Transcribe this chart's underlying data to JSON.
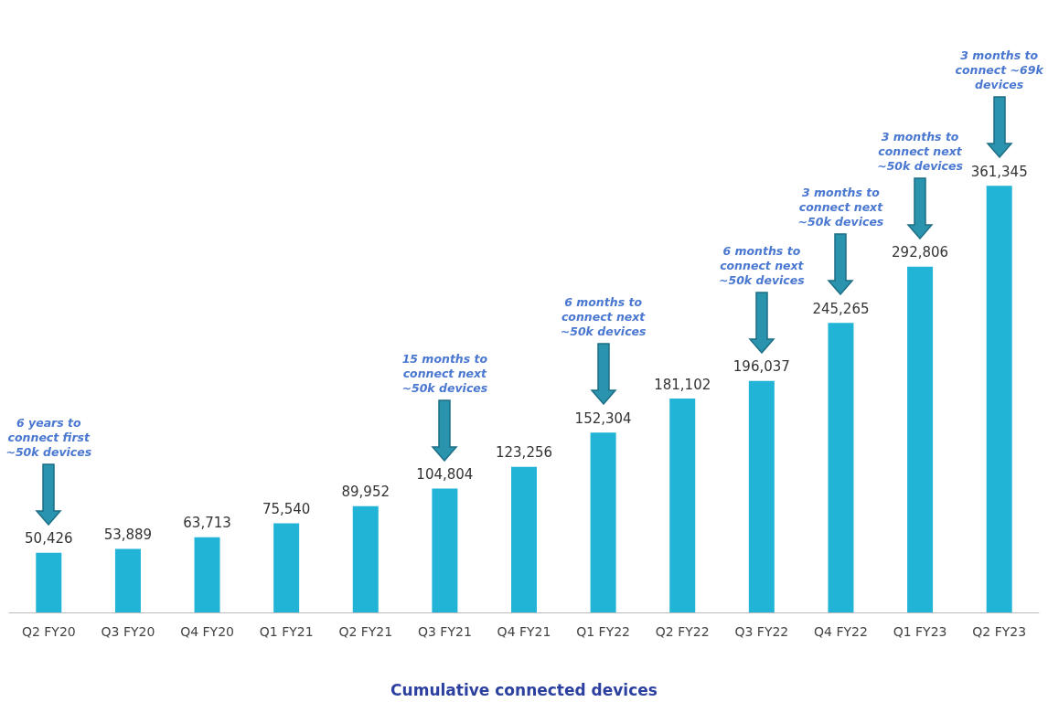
{
  "chart_data": {
    "type": "bar",
    "xlabel": "Cumulative connected devices",
    "categories": [
      "Q2 FY20",
      "Q3 FY20",
      "Q4 FY20",
      "Q1 FY21",
      "Q2 FY21",
      "Q3 FY21",
      "Q4 FY21",
      "Q1 FY22",
      "Q2 FY22",
      "Q3 FY22",
      "Q4 FY22",
      "Q1 FY23",
      "Q2 FY23"
    ],
    "values": [
      50426,
      53889,
      63713,
      75540,
      89952,
      104804,
      123256,
      152304,
      181102,
      196037,
      245265,
      292806,
      361345
    ],
    "color": "#22b4d6",
    "value_labels": [
      "50,426",
      "53,889",
      "63,713",
      "75,540",
      "89,952",
      "104,804",
      "123,256",
      "152,304",
      "181,102",
      "196,037",
      "245,265",
      "292,806",
      "361,345"
    ],
    "annotations": [
      "6 years to connect first ~50k devices",
      "15 months to connect next ~50k devices",
      "6 months to connect next ~50k devices",
      "6 months to connect next ~50k devices",
      "3 months to connect next ~50k devices",
      "3 months to connect next ~50k devices",
      "3 months to connect ~69k devices"
    ]
  }
}
